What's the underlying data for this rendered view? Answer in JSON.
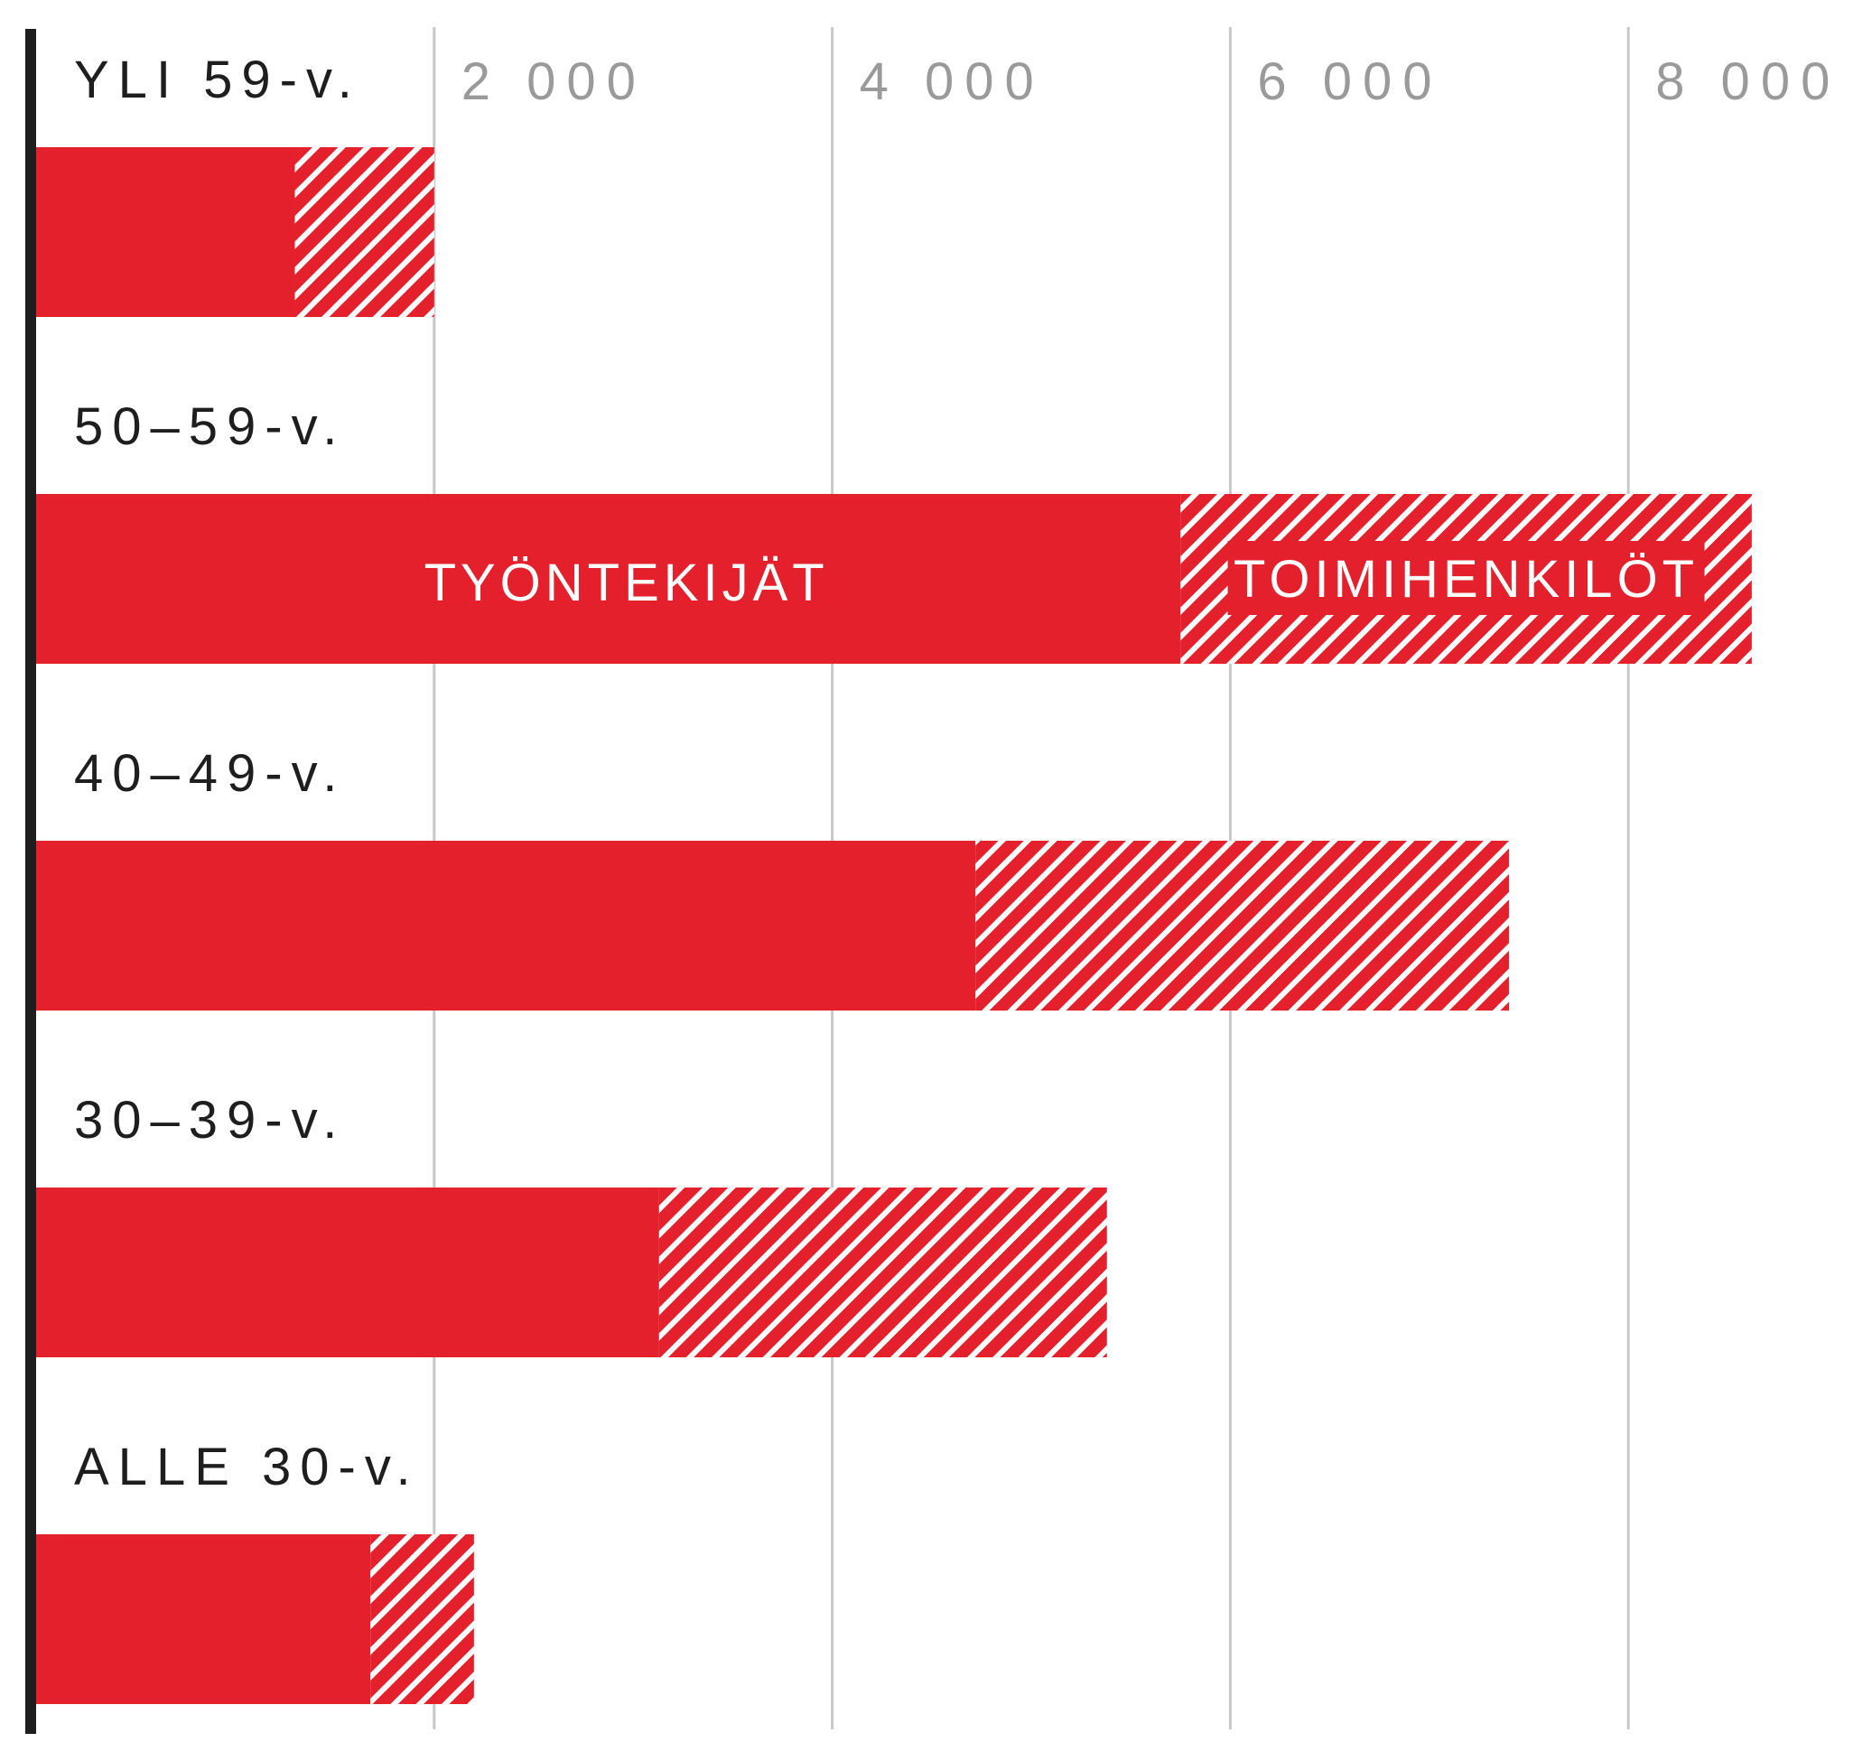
{
  "chart_data": {
    "type": "bar",
    "orientation": "horizontal",
    "stacked": true,
    "categories": [
      "YLI 59-v.",
      "50–59-v.",
      "40–49-v.",
      "30–39-v.",
      "ALLE 30-v."
    ],
    "series": [
      {
        "name": "TYÖNTEKIJÄT",
        "values": [
          1300,
          5750,
          4720,
          3130,
          1680
        ],
        "fill": "solid"
      },
      {
        "name": "TOIMIHENKILÖT",
        "values": [
          700,
          2870,
          2680,
          2250,
          520
        ],
        "fill": "hatched"
      }
    ],
    "xlim": [
      0,
      8900
    ],
    "xticks": [
      2000,
      4000,
      6000,
      8000
    ],
    "xtick_labels": [
      "2 000",
      "4 000",
      "6 000",
      "8 000"
    ],
    "grid": true,
    "legend": "inline labels on the 50–59-v. bar",
    "colors": {
      "bar": "#e3202b",
      "hatch": "#ffffff",
      "grid": "#c8c8c8",
      "axis": "#1e1e1e"
    }
  }
}
